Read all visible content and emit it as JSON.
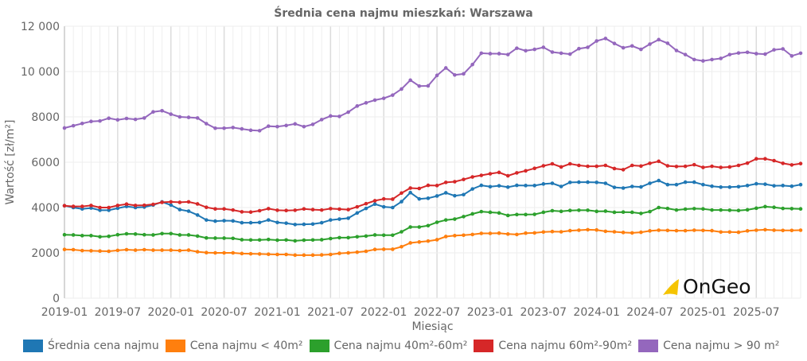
{
  "chart_data": {
    "type": "line",
    "title": "Średnia cena najmu mieszkań: Warszawa",
    "xlabel": "Miesiąc",
    "ylabel": "Wartość [zł/m²]",
    "ylim": [
      0,
      12000
    ],
    "yticks": [
      0,
      2000,
      4000,
      6000,
      8000,
      10000,
      12000
    ],
    "ytick_labels": [
      "0",
      "2000",
      "4000",
      "6000",
      "8000",
      "10 000",
      "12 000"
    ],
    "xtick_labels": [
      "2019-01",
      "2019-07",
      "2020-01",
      "2020-07",
      "2021-01",
      "2021-07",
      "2022-01",
      "2022-07",
      "2023-01",
      "2023-07",
      "2024-01",
      "2024-07",
      "2025-01",
      "2025-07"
    ],
    "grid": true,
    "legend_position": "bottom",
    "x": [
      "2019-01",
      "2019-02",
      "2019-03",
      "2019-04",
      "2019-05",
      "2019-06",
      "2019-07",
      "2019-08",
      "2019-09",
      "2019-10",
      "2019-11",
      "2019-12",
      "2020-01",
      "2020-02",
      "2020-03",
      "2020-04",
      "2020-05",
      "2020-06",
      "2020-07",
      "2020-08",
      "2020-09",
      "2020-10",
      "2020-11",
      "2020-12",
      "2021-01",
      "2021-02",
      "2021-03",
      "2021-04",
      "2021-05",
      "2021-06",
      "2021-07",
      "2021-08",
      "2021-09",
      "2021-10",
      "2021-11",
      "2021-12",
      "2022-01",
      "2022-02",
      "2022-03",
      "2022-04",
      "2022-05",
      "2022-06",
      "2022-07",
      "2022-08",
      "2022-09",
      "2022-10",
      "2022-11",
      "2022-12",
      "2023-01",
      "2023-02",
      "2023-03",
      "2023-04",
      "2023-05",
      "2023-06",
      "2023-07",
      "2023-08",
      "2023-09",
      "2023-10",
      "2023-11",
      "2023-12",
      "2024-01",
      "2024-02",
      "2024-03",
      "2024-04",
      "2024-05",
      "2024-06",
      "2024-07",
      "2024-08",
      "2024-09",
      "2024-10",
      "2024-11",
      "2024-12",
      "2025-01",
      "2025-02",
      "2025-03",
      "2025-04",
      "2025-05",
      "2025-06",
      "2025-07",
      "2025-08",
      "2025-09",
      "2025-10",
      "2025-11",
      "2025-12"
    ],
    "series": [
      {
        "name": "Średnia cena najmu",
        "color": "#1f77b4",
        "values": [
          4080,
          4000,
          3940,
          3980,
          3880,
          3880,
          3970,
          4050,
          4000,
          4020,
          4110,
          4250,
          4110,
          3910,
          3840,
          3670,
          3450,
          3400,
          3420,
          3410,
          3330,
          3330,
          3340,
          3450,
          3340,
          3310,
          3250,
          3260,
          3270,
          3330,
          3450,
          3490,
          3530,
          3760,
          3960,
          4150,
          4030,
          4000,
          4260,
          4660,
          4380,
          4410,
          4510,
          4650,
          4520,
          4570,
          4820,
          4980,
          4920,
          4960,
          4900,
          4980,
          4970,
          4970,
          5040,
          5070,
          4930,
          5110,
          5120,
          5120,
          5110,
          5070,
          4890,
          4860,
          4930,
          4910,
          5070,
          5190,
          5010,
          5010,
          5120,
          5120,
          5010,
          4940,
          4900,
          4900,
          4920,
          4970,
          5050,
          5030,
          4960,
          4970,
          4940,
          5010
        ]
      },
      {
        "name": "Cena najmu < 40m²",
        "color": "#ff7f0e",
        "values": [
          2150,
          2140,
          2100,
          2090,
          2080,
          2070,
          2110,
          2140,
          2120,
          2140,
          2120,
          2120,
          2120,
          2100,
          2120,
          2050,
          2010,
          2000,
          2000,
          2000,
          1970,
          1960,
          1950,
          1940,
          1930,
          1930,
          1900,
          1900,
          1900,
          1910,
          1930,
          1980,
          2000,
          2030,
          2070,
          2150,
          2160,
          2160,
          2270,
          2440,
          2480,
          2520,
          2580,
          2720,
          2760,
          2780,
          2810,
          2860,
          2860,
          2870,
          2830,
          2810,
          2870,
          2880,
          2920,
          2940,
          2930,
          2980,
          3000,
          3020,
          3010,
          2950,
          2930,
          2900,
          2880,
          2910,
          2970,
          3000,
          2990,
          2980,
          2980,
          3000,
          2990,
          2980,
          2920,
          2920,
          2910,
          2970,
          3000,
          3020,
          3000,
          2990,
          2990,
          3000
        ]
      },
      {
        "name": "Cena najmu 40m²-60m²",
        "color": "#2ca02c",
        "values": [
          2800,
          2790,
          2760,
          2760,
          2710,
          2730,
          2800,
          2840,
          2830,
          2800,
          2790,
          2850,
          2850,
          2790,
          2790,
          2740,
          2660,
          2650,
          2650,
          2640,
          2580,
          2570,
          2570,
          2590,
          2560,
          2570,
          2530,
          2560,
          2570,
          2580,
          2630,
          2670,
          2670,
          2710,
          2740,
          2790,
          2780,
          2780,
          2930,
          3140,
          3140,
          3200,
          3350,
          3450,
          3490,
          3600,
          3720,
          3820,
          3790,
          3760,
          3650,
          3690,
          3690,
          3700,
          3790,
          3860,
          3830,
          3870,
          3880,
          3880,
          3830,
          3840,
          3790,
          3800,
          3790,
          3740,
          3820,
          4000,
          3960,
          3890,
          3930,
          3950,
          3940,
          3890,
          3890,
          3880,
          3870,
          3900,
          3970,
          4040,
          4010,
          3960,
          3950,
          3940
        ]
      },
      {
        "name": "Cena najmu 60m²-90m²",
        "color": "#d62728",
        "values": [
          4080,
          4050,
          4050,
          4090,
          4000,
          4000,
          4090,
          4150,
          4090,
          4100,
          4140,
          4230,
          4250,
          4230,
          4250,
          4160,
          4010,
          3940,
          3940,
          3890,
          3810,
          3800,
          3860,
          3950,
          3880,
          3870,
          3880,
          3940,
          3910,
          3890,
          3950,
          3930,
          3910,
          4030,
          4170,
          4300,
          4380,
          4370,
          4640,
          4860,
          4840,
          4980,
          4970,
          5110,
          5140,
          5240,
          5350,
          5420,
          5490,
          5550,
          5400,
          5530,
          5620,
          5730,
          5840,
          5930,
          5790,
          5930,
          5860,
          5820,
          5820,
          5860,
          5720,
          5670,
          5860,
          5830,
          5950,
          6040,
          5840,
          5810,
          5820,
          5890,
          5770,
          5820,
          5770,
          5790,
          5860,
          5960,
          6150,
          6150,
          6070,
          5950,
          5880,
          5940
        ]
      },
      {
        "name": "Cena najmu > 90 m²",
        "color": "#9467bd",
        "values": [
          7510,
          7610,
          7710,
          7800,
          7820,
          7940,
          7870,
          7930,
          7890,
          7950,
          8220,
          8270,
          8120,
          8000,
          7980,
          7950,
          7700,
          7500,
          7500,
          7530,
          7470,
          7410,
          7390,
          7590,
          7570,
          7620,
          7690,
          7570,
          7670,
          7880,
          8040,
          8020,
          8210,
          8480,
          8620,
          8740,
          8820,
          8960,
          9230,
          9620,
          9360,
          9370,
          9830,
          10160,
          9850,
          9900,
          10310,
          10810,
          10790,
          10790,
          10750,
          11030,
          10920,
          10980,
          11070,
          10860,
          10810,
          10770,
          11010,
          11070,
          11350,
          11460,
          11240,
          11050,
          11130,
          10980,
          11210,
          11410,
          11250,
          10930,
          10750,
          10530,
          10470,
          10530,
          10580,
          10750,
          10820,
          10850,
          10790,
          10770,
          10960,
          11000,
          10690,
          10810
        ]
      }
    ]
  },
  "watermark": {
    "text": "OnGeo",
    "color": "#f5c400"
  }
}
